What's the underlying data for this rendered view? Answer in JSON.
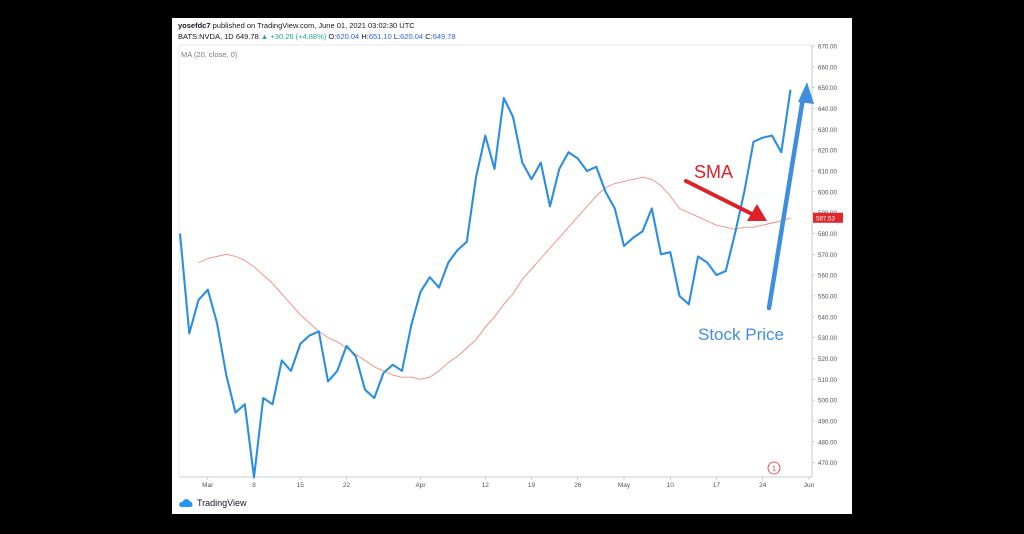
{
  "header": {
    "author": "yosefdc7",
    "published": "published on TradingView.com, June 01, 2021 03:02:30 UTC",
    "symbol": "BATS:NVDA, 1D",
    "last": "649.78",
    "change": "+30.26 (+4.88%)",
    "o_label": "O:",
    "o_value": "620.04",
    "h_label": "H:",
    "h_value": "651.10",
    "l_label": "L:",
    "l_value": "620.04",
    "c_label": "C:",
    "c_value": "649.78"
  },
  "indicator_label": "MA (20, close, 0)",
  "footer": {
    "brand": "TradingView"
  },
  "colors": {
    "price": "#2b8ee0",
    "ma": "#f08a80",
    "sma_arrow": "#e02028",
    "price_arrow": "#3f8ee0",
    "badge": "#e0262f"
  },
  "chart_data": {
    "type": "line",
    "ylim": [
      465,
      670
    ],
    "y_ticks": [
      "670.00",
      "660.00",
      "650.00",
      "640.00",
      "630.00",
      "620.00",
      "610.00",
      "600.00",
      "590.00",
      "580.00",
      "570.00",
      "560.00",
      "550.00",
      "540.00",
      "530.00",
      "520.00",
      "510.00",
      "500.00",
      "490.00",
      "480.00",
      "470.00"
    ],
    "y_tick_values": [
      670,
      660,
      650,
      640,
      630,
      620,
      610,
      600,
      590,
      580,
      570,
      560,
      550,
      540,
      530,
      520,
      510,
      500,
      490,
      480,
      470
    ],
    "x_ticks": [
      {
        "label": "Mar",
        "i": 3
      },
      {
        "label": "8",
        "i": 8
      },
      {
        "label": "15",
        "i": 13
      },
      {
        "label": "22",
        "i": 18
      },
      {
        "label": "Apr",
        "i": 26
      },
      {
        "label": "12",
        "i": 33
      },
      {
        "label": "19",
        "i": 38
      },
      {
        "label": "26",
        "i": 43
      },
      {
        "label": "May",
        "i": 48
      },
      {
        "label": "10",
        "i": 53
      },
      {
        "label": "17",
        "i": 58
      },
      {
        "label": "24",
        "i": 63
      },
      {
        "label": "Jun",
        "i": 68
      }
    ],
    "x_count": 70,
    "series": [
      {
        "key": "price",
        "values": [
          580,
          532,
          548,
          553,
          537,
          512,
          494,
          498,
          463,
          501,
          498,
          519,
          514,
          527,
          531,
          533,
          509,
          514,
          526,
          521,
          505,
          501,
          513,
          517,
          514,
          536,
          552,
          559,
          554,
          566,
          572,
          576,
          607,
          627,
          611,
          645,
          636,
          614,
          606,
          614,
          593,
          611,
          619,
          616,
          610,
          612,
          600,
          592,
          574,
          578,
          581,
          592,
          570,
          571,
          550,
          546,
          569,
          566,
          560,
          562,
          580,
          600,
          624,
          626,
          627,
          619,
          649
        ]
      },
      {
        "key": "ma",
        "values": [
          566,
          568,
          569,
          570,
          569,
          567,
          564,
          560,
          556,
          551,
          546,
          541,
          537,
          533,
          530,
          528,
          525,
          522,
          519,
          516,
          514,
          512,
          511,
          511,
          510,
          511,
          514,
          518,
          521,
          525,
          529,
          535,
          540,
          546,
          551,
          558,
          563,
          568,
          573,
          578,
          583,
          588,
          593,
          598,
          602,
          604,
          605,
          606,
          607,
          606,
          603,
          598,
          592,
          590,
          588,
          586,
          584,
          583,
          582,
          583,
          583,
          584,
          585,
          586,
          587.53
        ]
      }
    ],
    "ma_offset": 2,
    "last_ma_label": "587.53",
    "annotations": [
      {
        "text": "SMA"
      },
      {
        "text": "Stock Price"
      }
    ],
    "badge": "1"
  }
}
